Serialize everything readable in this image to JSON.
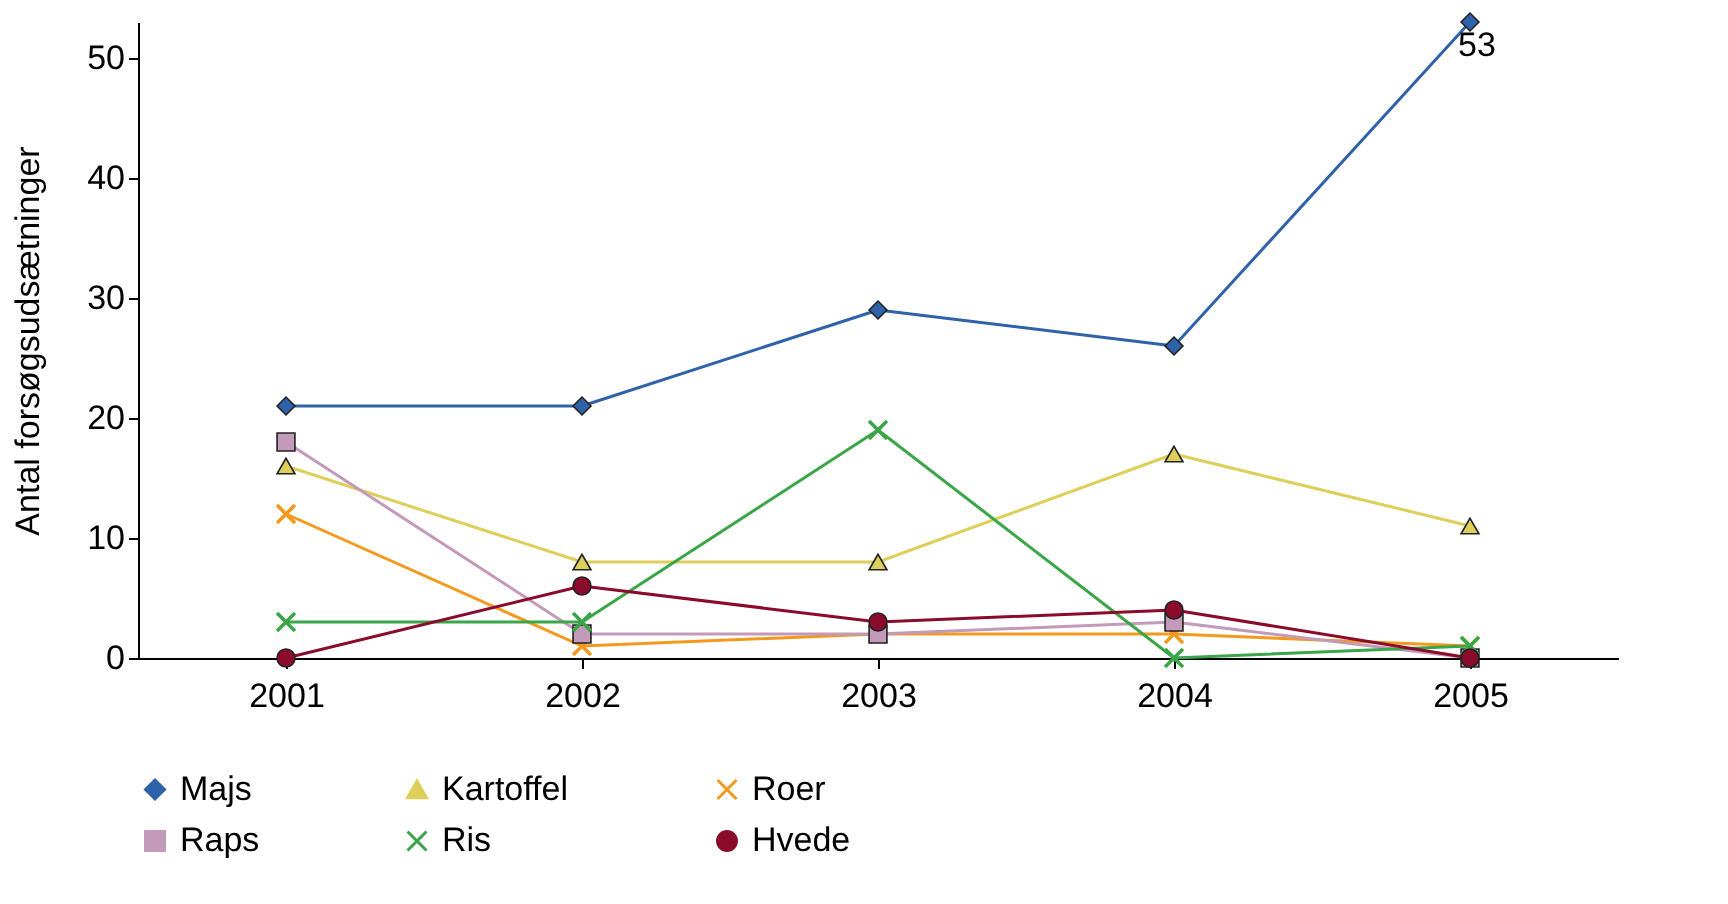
{
  "chart_data": {
    "type": "line",
    "ylabel": "Antal forsøgsudsætninger",
    "categories": [
      "2001",
      "2002",
      "2003",
      "2004",
      "2005"
    ],
    "ylim": [
      0,
      53
    ],
    "yticks": [
      0,
      10,
      20,
      30,
      40,
      50
    ],
    "grid": false,
    "legend": "bottom",
    "series": [
      {
        "name": "Majs",
        "color": "#2f62a8",
        "marker": "diamond",
        "values": [
          21,
          21,
          29,
          26,
          53
        ],
        "value_labels": [
          null,
          null,
          null,
          null,
          "53"
        ]
      },
      {
        "name": "Kartoffel",
        "color": "#ddcf5a",
        "marker": "triangle",
        "values": [
          16,
          8,
          8,
          17,
          11
        ]
      },
      {
        "name": "Roer",
        "color": "#f39a1e",
        "marker": "cross",
        "values": [
          12,
          1,
          2,
          2,
          1
        ]
      },
      {
        "name": "Raps",
        "color": "#c39ab9",
        "marker": "square",
        "values": [
          18,
          2,
          2,
          3,
          0
        ]
      },
      {
        "name": "Ris",
        "color": "#3aa648",
        "marker": "cross",
        "values": [
          3,
          3,
          19,
          0,
          1
        ]
      },
      {
        "name": "Hvede",
        "color": "#8a0b2c",
        "marker": "circle",
        "values": [
          0,
          6,
          3,
          4,
          0
        ]
      }
    ]
  }
}
